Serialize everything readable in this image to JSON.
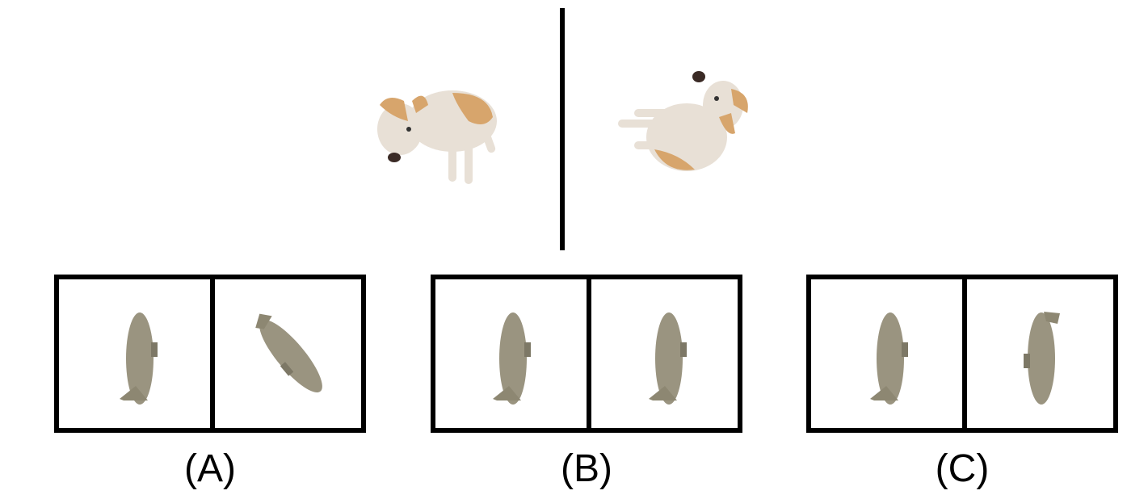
{
  "reference_images": {
    "left": {
      "icon": "dog-icon",
      "description_visible": false
    },
    "right": {
      "icon": "dog-icon",
      "description_visible": false
    }
  },
  "options": [
    {
      "label": "(A)"
    },
    {
      "label": "(B)"
    },
    {
      "label": "(C)"
    }
  ],
  "colors": {
    "object": "#9a9480",
    "object_dark": "#7d7866",
    "dog_fur": "#e8e0d6",
    "dog_tan": "#d7a56c",
    "border": "#000000"
  }
}
